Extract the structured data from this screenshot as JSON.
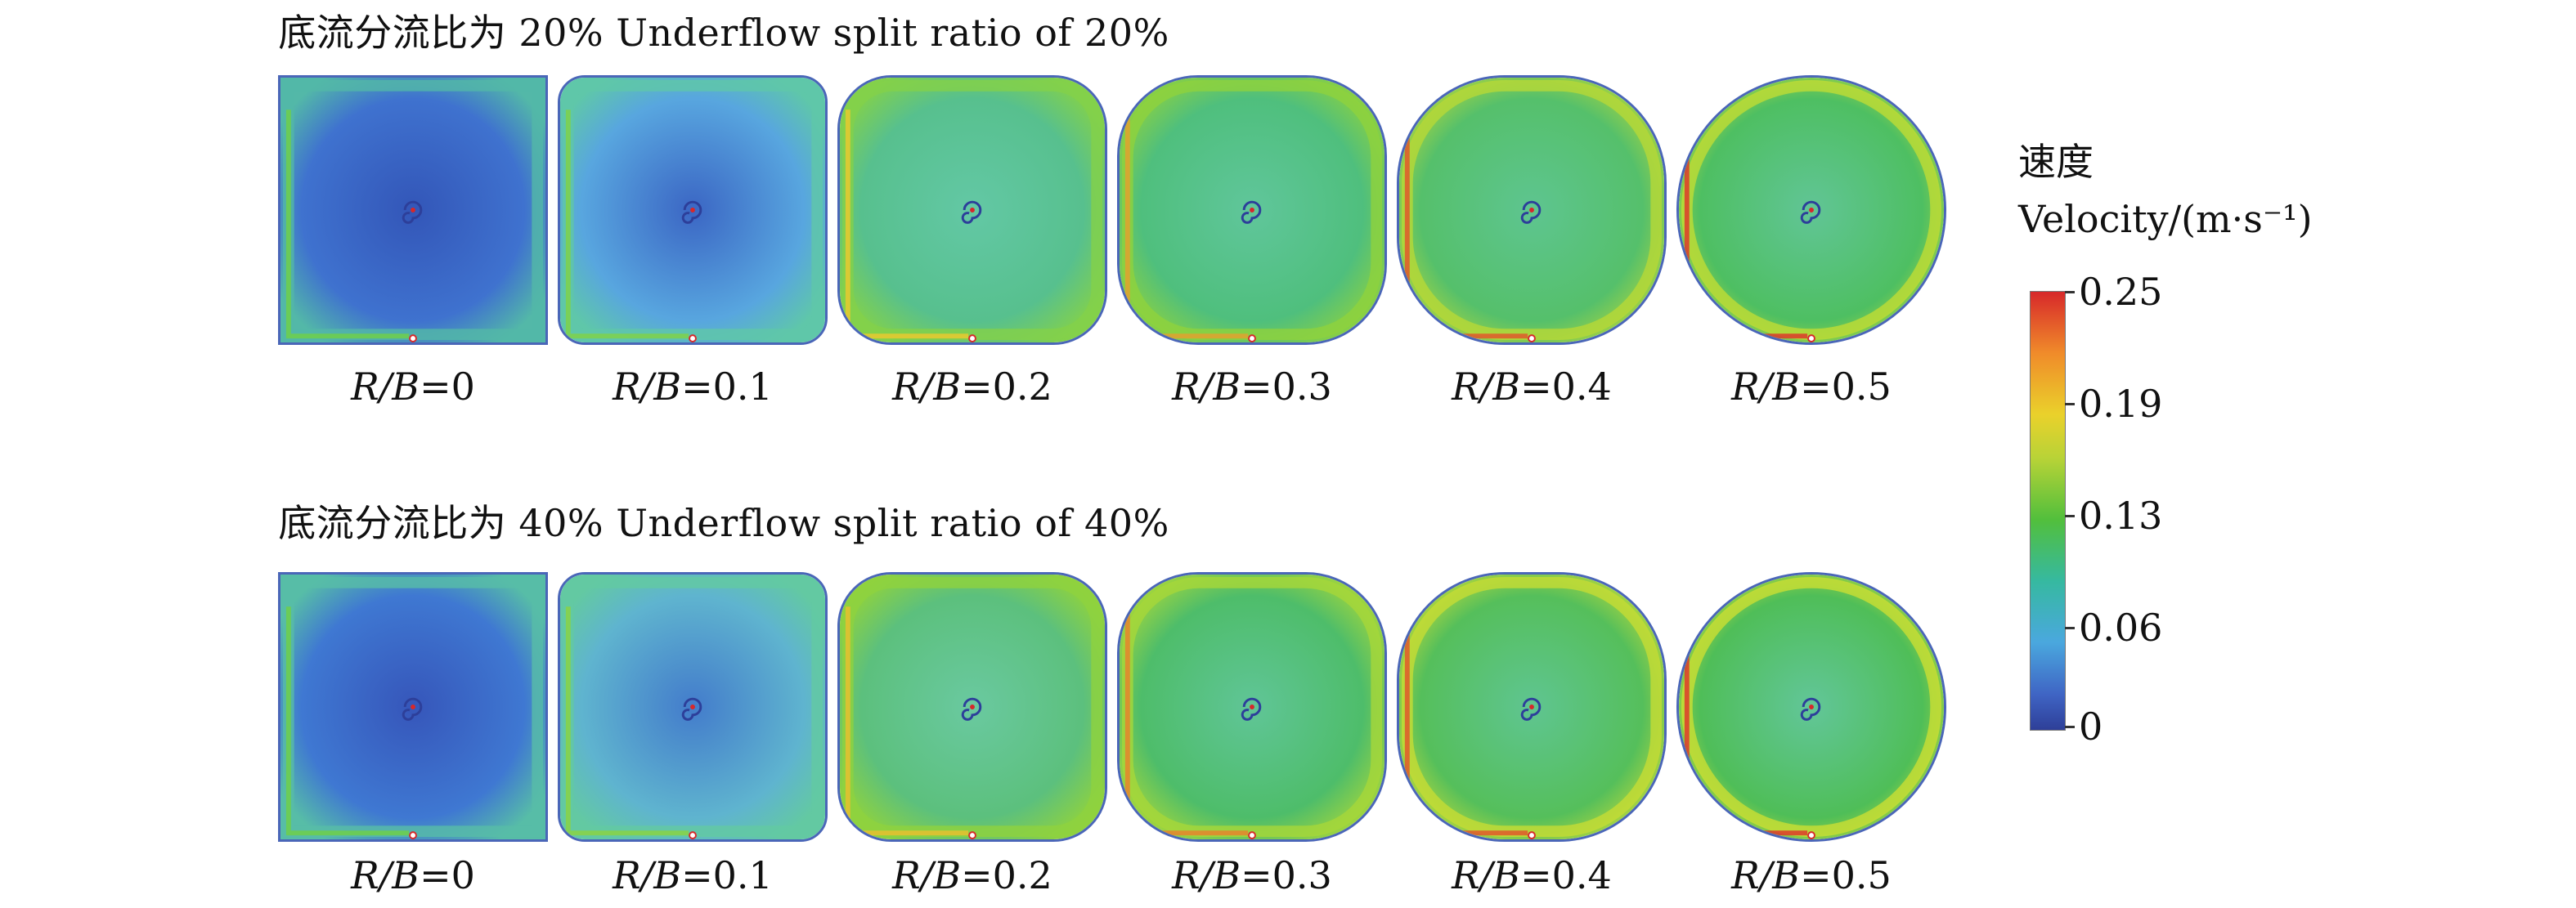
{
  "rows": [
    {
      "title": "底流分流比为 20% Underflow split ratio of 20%",
      "panels": [
        {
          "label_var": "R/B",
          "label_val": "=0"
        },
        {
          "label_var": "R/B",
          "label_val": "=0.1"
        },
        {
          "label_var": "R/B",
          "label_val": "=0.2"
        },
        {
          "label_var": "R/B",
          "label_val": "=0.3"
        },
        {
          "label_var": "R/B",
          "label_val": "=0.4"
        },
        {
          "label_var": "R/B",
          "label_val": "=0.5"
        }
      ]
    },
    {
      "title": "底流分流比为 40% Underflow split ratio of 40%",
      "panels": [
        {
          "label_var": "R/B",
          "label_val": "=0"
        },
        {
          "label_var": "R/B",
          "label_val": "=0.1"
        },
        {
          "label_var": "R/B",
          "label_val": "=0.2"
        },
        {
          "label_var": "R/B",
          "label_val": "=0.3"
        },
        {
          "label_var": "R/B",
          "label_val": "=0.4"
        },
        {
          "label_var": "R/B",
          "label_val": "=0.5"
        }
      ]
    }
  ],
  "legend": {
    "title_cn": "速度",
    "title_en": "Velocity/(m·s⁻¹)",
    "ticks": [
      "0.25",
      "0.19",
      "0.13",
      "0.06",
      "0"
    ],
    "colors": {
      "max": "#d7282a",
      "high": "#ead12b",
      "mid": "#52bf3c",
      "low": "#4aa8de",
      "min": "#2e3f98"
    }
  }
}
